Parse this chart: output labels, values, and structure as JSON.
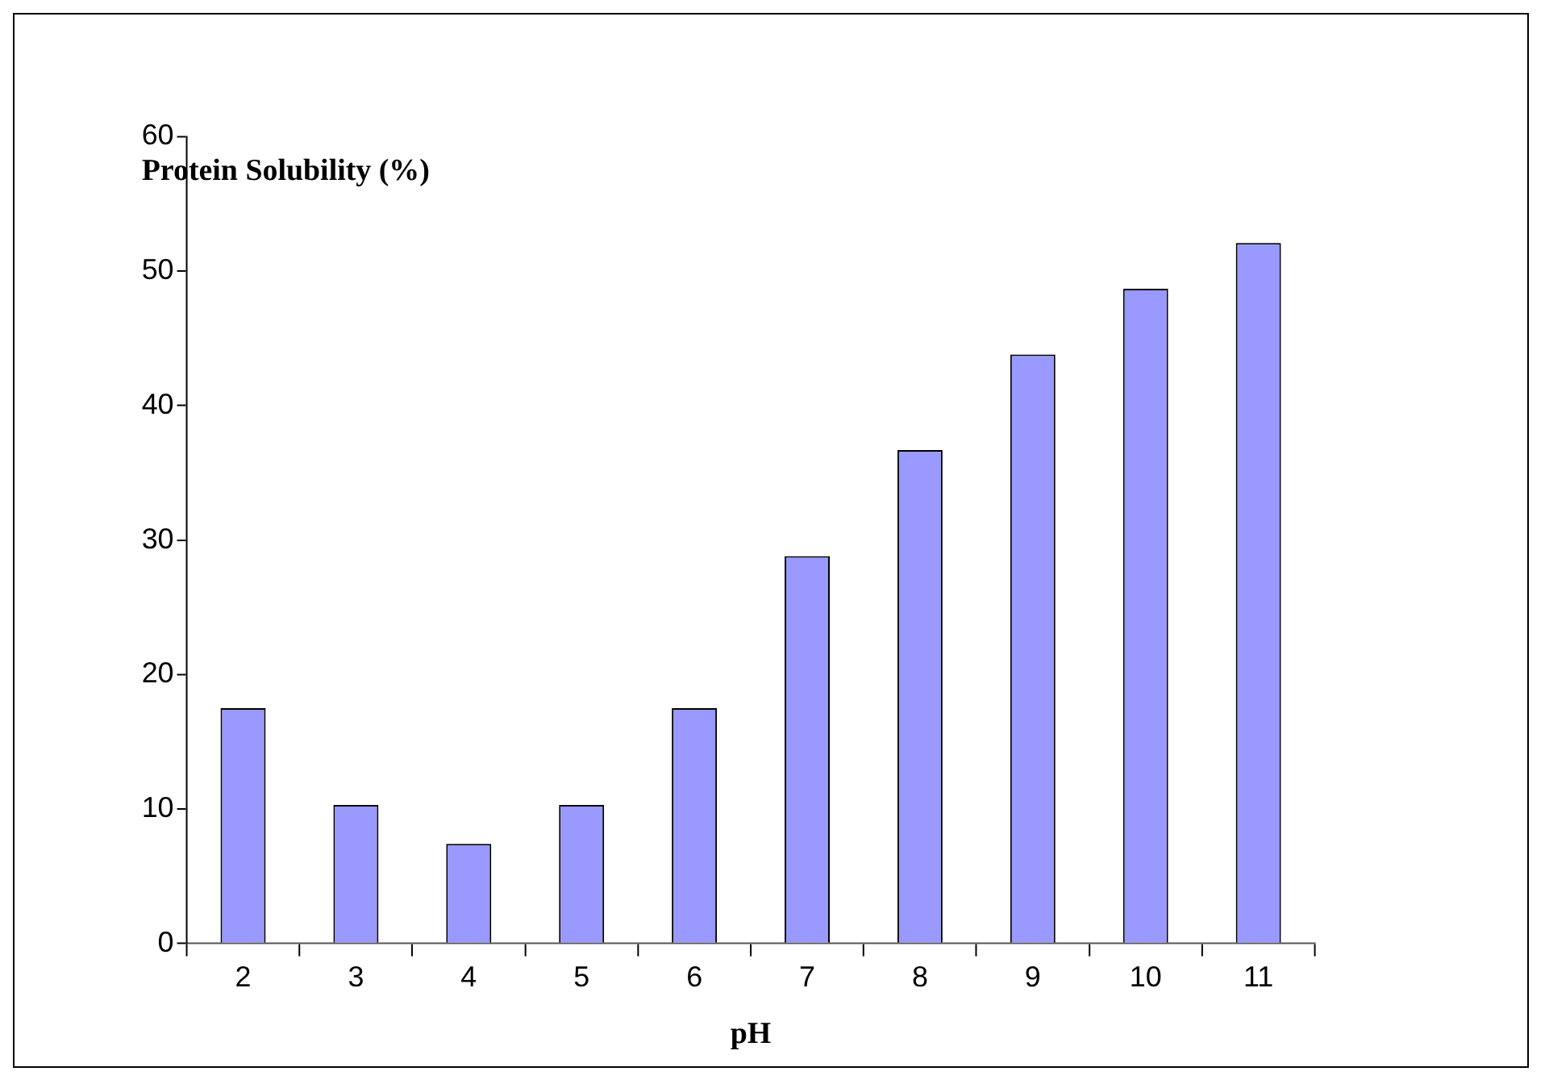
{
  "chart_data": {
    "type": "bar",
    "xlabel": "pH",
    "ylabel": "Protein Solubility (%)",
    "categories": [
      "2",
      "3",
      "4",
      "5",
      "6",
      "7",
      "8",
      "9",
      "10",
      "11"
    ],
    "values": [
      17.5,
      10.3,
      7.4,
      10.3,
      17.5,
      28.8,
      36.7,
      43.8,
      48.7,
      52.1
    ],
    "color": "#9999ff",
    "ylim": [
      0,
      60
    ],
    "yticks": [
      0,
      10,
      20,
      30,
      40,
      50,
      60
    ],
    "grid": false,
    "legend": false
  }
}
